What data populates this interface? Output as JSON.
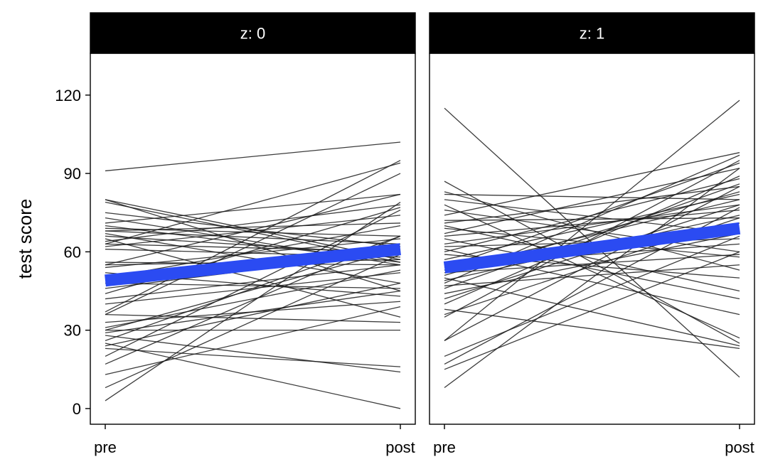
{
  "chart_data": {
    "type": "line",
    "facet_variable": "z",
    "ylabel": "test score",
    "xlabel": "",
    "ylim": [
      -6,
      136
    ],
    "y_ticks": [
      0,
      30,
      60,
      90,
      120
    ],
    "x_categories": [
      "pre",
      "post"
    ],
    "grid": false,
    "colors": {
      "individual_lines": "#1a1a1a",
      "trend_line": "#2b4bf2",
      "strip_background": "#000000",
      "strip_text": "#ffffff"
    },
    "panels": [
      {
        "label": "z: 0",
        "trend": [
          49,
          61
        ],
        "lines": [
          [
            91,
            102
          ],
          [
            80,
            57
          ],
          [
            80,
            45
          ],
          [
            79,
            56
          ],
          [
            75,
            62
          ],
          [
            73,
            55
          ],
          [
            71,
            82
          ],
          [
            70,
            56
          ],
          [
            69,
            66
          ],
          [
            68,
            63
          ],
          [
            68,
            71
          ],
          [
            67,
            48
          ],
          [
            66,
            59
          ],
          [
            65,
            35
          ],
          [
            64,
            78
          ],
          [
            63,
            94
          ],
          [
            63,
            60
          ],
          [
            62,
            74
          ],
          [
            61,
            58
          ],
          [
            56,
            55
          ],
          [
            55,
            82
          ],
          [
            55,
            57
          ],
          [
            54,
            65
          ],
          [
            52,
            43
          ],
          [
            50,
            70
          ],
          [
            48,
            46
          ],
          [
            46,
            60
          ],
          [
            44,
            77
          ],
          [
            42,
            55
          ],
          [
            40,
            52
          ],
          [
            37,
            95
          ],
          [
            36,
            90
          ],
          [
            36,
            33
          ],
          [
            33,
            41
          ],
          [
            31,
            53
          ],
          [
            30,
            61
          ],
          [
            30,
            30
          ],
          [
            29,
            45
          ],
          [
            28,
            14
          ],
          [
            26,
            66
          ],
          [
            24,
            48
          ],
          [
            23,
            16
          ],
          [
            20,
            76
          ],
          [
            17,
            66
          ],
          [
            13,
            39
          ],
          [
            8,
            59
          ],
          [
            3,
            79
          ],
          [
            25,
            0
          ]
        ]
      },
      {
        "label": "z: 1",
        "trend": [
          54,
          69
        ],
        "lines": [
          [
            115,
            12
          ],
          [
            87,
            25
          ],
          [
            83,
            53
          ],
          [
            82,
            80
          ],
          [
            80,
            67
          ],
          [
            78,
            27
          ],
          [
            76,
            60
          ],
          [
            74,
            98
          ],
          [
            72,
            73
          ],
          [
            71,
            85
          ],
          [
            70,
            45
          ],
          [
            69,
            58
          ],
          [
            67,
            92
          ],
          [
            66,
            76
          ],
          [
            65,
            42
          ],
          [
            63,
            78
          ],
          [
            62,
            65
          ],
          [
            61,
            36
          ],
          [
            60,
            88
          ],
          [
            59,
            50
          ],
          [
            57,
            82
          ],
          [
            56,
            71
          ],
          [
            55,
            63
          ],
          [
            54,
            94
          ],
          [
            53,
            80
          ],
          [
            52,
            59
          ],
          [
            51,
            83
          ],
          [
            50,
            24
          ],
          [
            49,
            74
          ],
          [
            48,
            97
          ],
          [
            47,
            55
          ],
          [
            46,
            86
          ],
          [
            44,
            67
          ],
          [
            42,
            78
          ],
          [
            40,
            89
          ],
          [
            38,
            23
          ],
          [
            36,
            73
          ],
          [
            35,
            95
          ],
          [
            26,
            118
          ],
          [
            26,
            85
          ],
          [
            20,
            66
          ],
          [
            17,
            77
          ],
          [
            15,
            60
          ],
          [
            8,
            92
          ]
        ]
      }
    ]
  }
}
